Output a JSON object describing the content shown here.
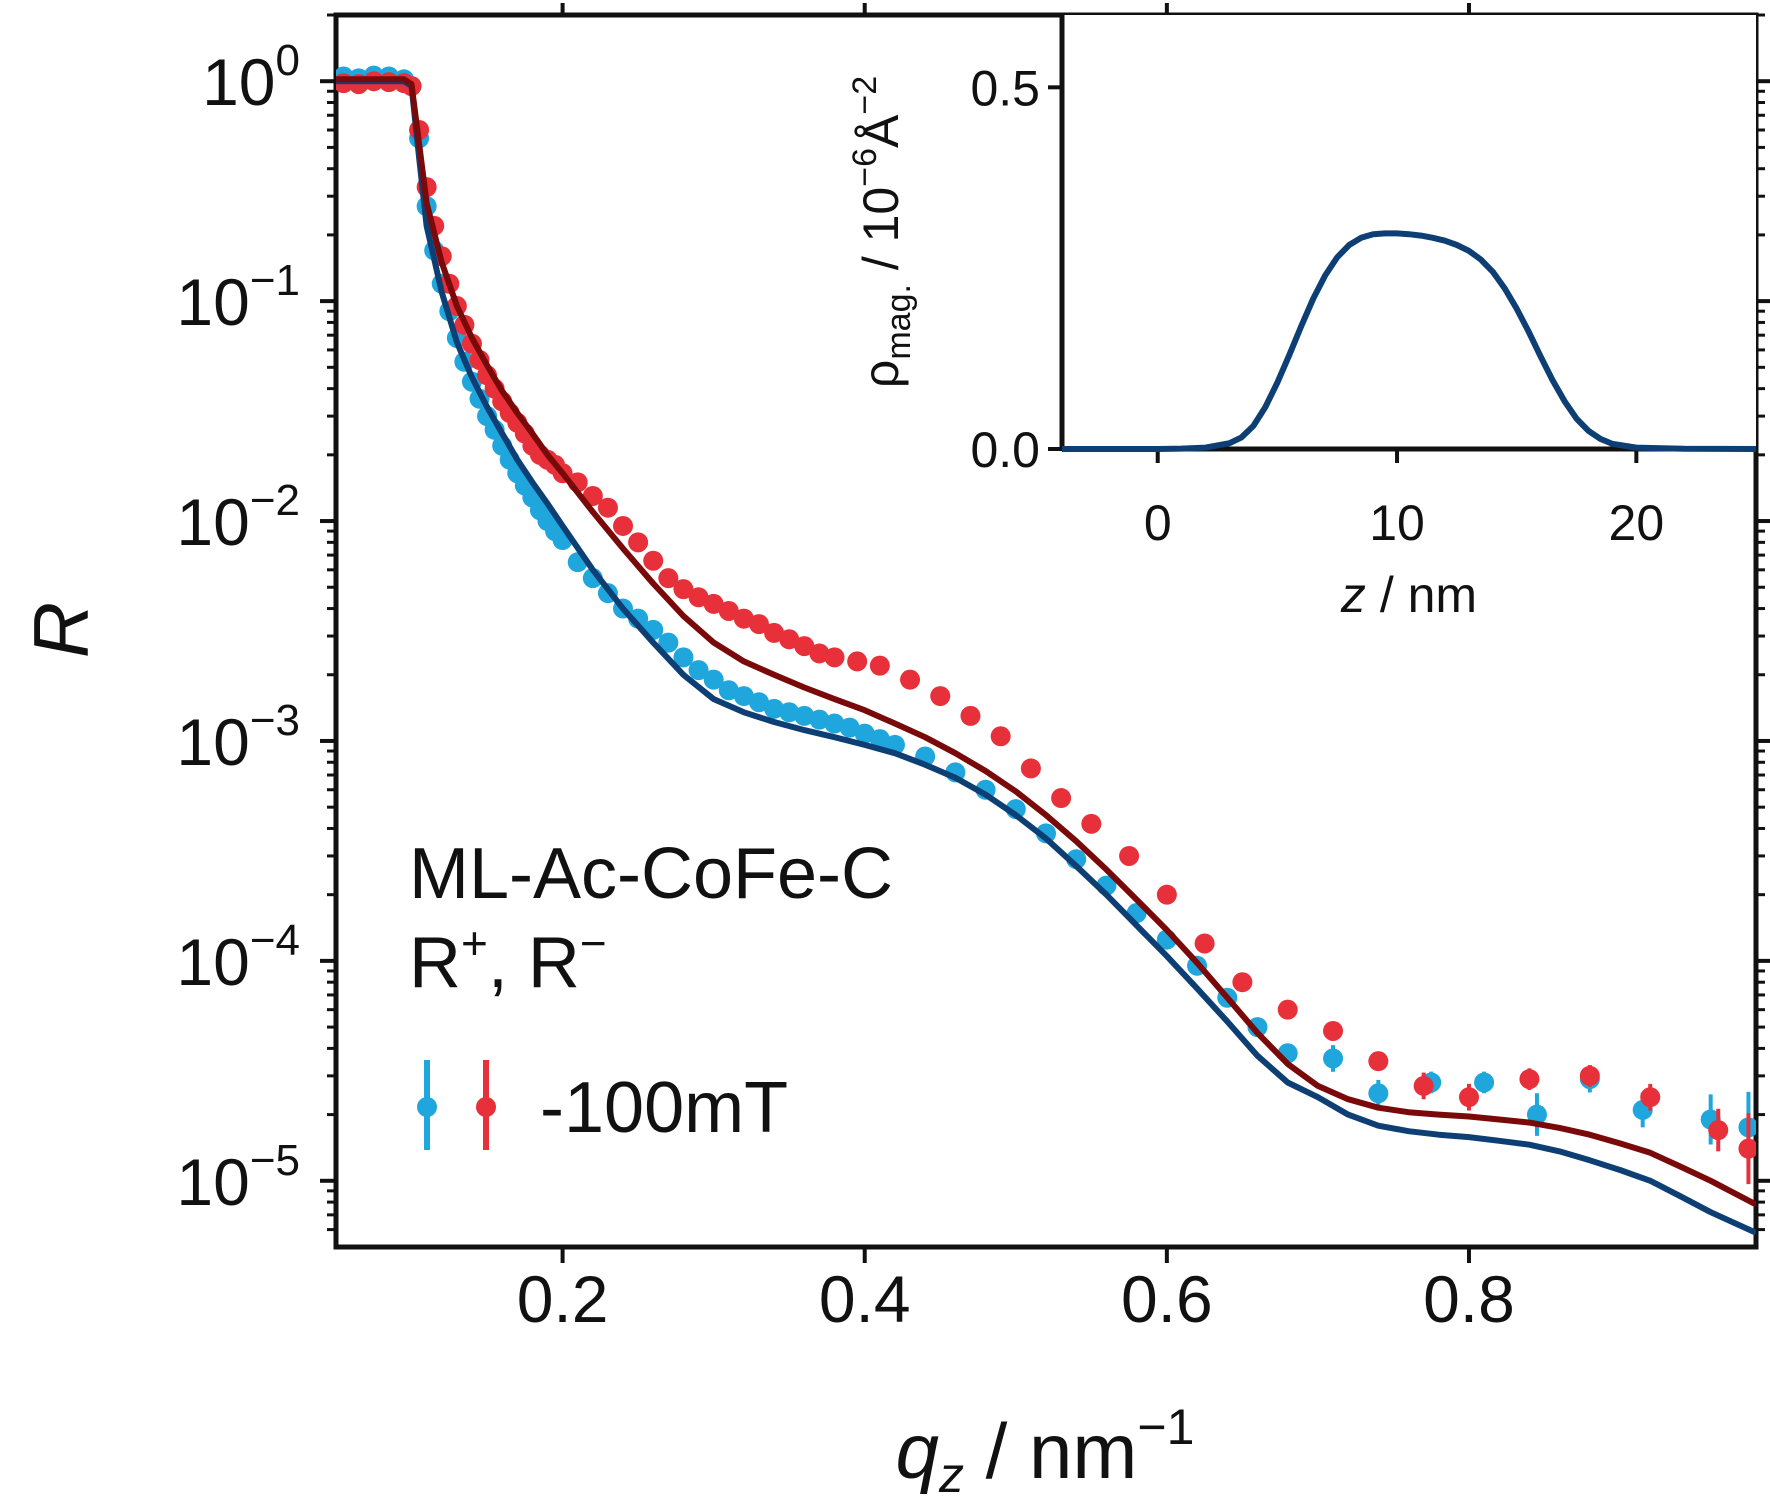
{
  "chart_data": [
    {
      "type": "scatter",
      "title": "",
      "ylabel": "R",
      "xlabel_base": "q",
      "xlabel_sub": "z",
      "xlabel_unit": " / nm",
      "xlabel_exp": "−1",
      "yscale": "log",
      "xlim": [
        0.05,
        0.99
      ],
      "ylim": [
        5e-06,
        2
      ],
      "x_ticks": [
        0.2,
        0.4,
        0.6,
        0.8
      ],
      "x_tick_labels": [
        "0.2",
        "0.4",
        "0.6",
        "0.8"
      ],
      "y_ticks": [
        1,
        0.1,
        0.01,
        0.001,
        0.0001,
        1e-05
      ],
      "y_tick_base": "10",
      "y_tick_exponents": [
        "0",
        "−1",
        "−2",
        "−3",
        "−4",
        "−5"
      ],
      "annotation": {
        "line1": "ML-Ac-CoFe-C",
        "line2_a": "R",
        "line2_a_sup": "+",
        "line2_sep": ", R",
        "line2_b_sup": "−"
      },
      "legend": {
        "label": "-100mT",
        "placement": "lower-left"
      },
      "series": [
        {
          "kind": "points",
          "color": "#1fa6dc",
          "x": [
            0.055,
            0.065,
            0.075,
            0.085,
            0.095,
            0.1,
            0.105,
            0.11,
            0.115,
            0.12,
            0.125,
            0.13,
            0.135,
            0.14,
            0.145,
            0.15,
            0.155,
            0.16,
            0.165,
            0.17,
            0.175,
            0.18,
            0.185,
            0.19,
            0.195,
            0.2,
            0.21,
            0.22,
            0.23,
            0.24,
            0.25,
            0.26,
            0.27,
            0.28,
            0.29,
            0.3,
            0.31,
            0.32,
            0.33,
            0.34,
            0.35,
            0.36,
            0.37,
            0.38,
            0.39,
            0.4,
            0.41,
            0.42,
            0.44,
            0.46,
            0.48,
            0.5,
            0.52,
            0.54,
            0.56,
            0.58,
            0.6,
            0.62,
            0.64,
            0.66,
            0.68,
            0.71,
            0.74,
            0.775,
            0.81,
            0.845,
            0.88,
            0.915,
            0.96,
            0.985
          ],
          "y": [
            1.05,
            1.03,
            1.06,
            1.05,
            1.02,
            0.95,
            0.55,
            0.27,
            0.17,
            0.12,
            0.09,
            0.068,
            0.053,
            0.043,
            0.036,
            0.03,
            0.026,
            0.022,
            0.019,
            0.0165,
            0.0145,
            0.0128,
            0.0112,
            0.01,
            0.009,
            0.0082,
            0.0065,
            0.0055,
            0.0047,
            0.004,
            0.0036,
            0.0032,
            0.0028,
            0.0024,
            0.0021,
            0.0019,
            0.0017,
            0.0016,
            0.0015,
            0.0014,
            0.00135,
            0.0013,
            0.00125,
            0.0012,
            0.00115,
            0.00108,
            0.00102,
            0.00096,
            0.00085,
            0.00072,
            0.0006,
            0.00049,
            0.00038,
            0.00029,
            0.00022,
            0.000165,
            0.000125,
            9.5e-05,
            6.8e-05,
            5e-05,
            3.8e-05,
            3.6e-05,
            2.5e-05,
            2.8e-05,
            2.8e-05,
            2e-05,
            2.9e-05,
            2.1e-05,
            1.9e-05,
            1.75e-05
          ],
          "err": [
            0,
            0,
            0,
            0,
            0,
            0,
            0,
            0,
            0,
            0,
            0,
            0,
            0,
            0,
            0,
            0,
            0,
            0,
            0,
            0,
            0,
            0,
            0,
            0,
            0,
            0,
            0,
            0,
            0,
            0,
            0,
            0,
            0,
            0,
            0,
            0,
            0,
            0,
            0,
            0,
            0,
            0,
            0,
            0,
            0,
            0,
            0,
            0,
            0,
            0,
            0,
            0,
            0,
            0,
            0,
            0,
            0,
            0,
            0,
            0,
            0,
            0.15,
            0.15,
            0.12,
            0.12,
            0.25,
            0.15,
            0.2,
            0.3,
            0.45
          ]
        },
        {
          "kind": "points",
          "color": "#e8303a",
          "x": [
            0.055,
            0.065,
            0.075,
            0.085,
            0.095,
            0.1,
            0.105,
            0.11,
            0.115,
            0.12,
            0.125,
            0.13,
            0.135,
            0.14,
            0.145,
            0.15,
            0.155,
            0.16,
            0.165,
            0.17,
            0.175,
            0.18,
            0.185,
            0.19,
            0.195,
            0.2,
            0.21,
            0.22,
            0.23,
            0.24,
            0.25,
            0.26,
            0.27,
            0.28,
            0.29,
            0.3,
            0.31,
            0.32,
            0.33,
            0.34,
            0.35,
            0.36,
            0.37,
            0.38,
            0.395,
            0.41,
            0.43,
            0.45,
            0.47,
            0.49,
            0.51,
            0.53,
            0.55,
            0.575,
            0.6,
            0.625,
            0.65,
            0.68,
            0.71,
            0.74,
            0.77,
            0.8,
            0.84,
            0.88,
            0.92,
            0.965,
            0.985
          ],
          "y": [
            0.98,
            0.97,
            1.0,
            0.99,
            0.98,
            0.95,
            0.6,
            0.33,
            0.22,
            0.16,
            0.12,
            0.095,
            0.078,
            0.064,
            0.054,
            0.046,
            0.04,
            0.035,
            0.031,
            0.028,
            0.025,
            0.022,
            0.02,
            0.019,
            0.018,
            0.0165,
            0.015,
            0.013,
            0.0115,
            0.0095,
            0.008,
            0.0066,
            0.0055,
            0.0049,
            0.0045,
            0.0042,
            0.0039,
            0.0036,
            0.0034,
            0.0031,
            0.0029,
            0.0027,
            0.0025,
            0.0024,
            0.0023,
            0.0022,
            0.0019,
            0.0016,
            0.0013,
            0.00105,
            0.00075,
            0.00055,
            0.00042,
            0.0003,
            0.0002,
            0.00012,
            8e-05,
            6e-05,
            4.8e-05,
            3.5e-05,
            2.7e-05,
            2.4e-05,
            2.9e-05,
            3e-05,
            2.4e-05,
            1.7e-05,
            1.4e-05
          ],
          "err": [
            0,
            0,
            0,
            0,
            0,
            0,
            0,
            0,
            0,
            0,
            0,
            0,
            0,
            0,
            0,
            0,
            0,
            0,
            0,
            0,
            0,
            0,
            0,
            0,
            0,
            0,
            0,
            0,
            0,
            0,
            0,
            0,
            0,
            0,
            0,
            0,
            0,
            0,
            0,
            0,
            0,
            0,
            0,
            0,
            0,
            0,
            0,
            0,
            0,
            0,
            0,
            0,
            0,
            0,
            0,
            0,
            0,
            0,
            0,
            0,
            0.15,
            0.15,
            0.12,
            0.12,
            0.15,
            0.25,
            0.45
          ]
        },
        {
          "kind": "line",
          "color": "#0e3f74",
          "x": [
            0.05,
            0.095,
            0.1,
            0.105,
            0.11,
            0.12,
            0.13,
            0.14,
            0.15,
            0.16,
            0.17,
            0.18,
            0.19,
            0.2,
            0.22,
            0.24,
            0.26,
            0.28,
            0.3,
            0.32,
            0.34,
            0.36,
            0.38,
            0.4,
            0.42,
            0.44,
            0.46,
            0.48,
            0.5,
            0.52,
            0.54,
            0.56,
            0.58,
            0.6,
            0.62,
            0.64,
            0.66,
            0.68,
            0.7,
            0.72,
            0.74,
            0.76,
            0.78,
            0.8,
            0.82,
            0.84,
            0.86,
            0.88,
            0.9,
            0.92,
            0.94,
            0.96,
            0.99
          ],
          "y": [
            1.0,
            1.0,
            0.95,
            0.45,
            0.22,
            0.11,
            0.065,
            0.045,
            0.033,
            0.025,
            0.019,
            0.015,
            0.012,
            0.0095,
            0.006,
            0.004,
            0.0028,
            0.002,
            0.00155,
            0.00135,
            0.00122,
            0.00112,
            0.00104,
            0.00096,
            0.00088,
            0.00078,
            0.00068,
            0.00057,
            0.00046,
            0.00036,
            0.00027,
            0.0002,
            0.000145,
            0.000105,
            7.5e-05,
            5.3e-05,
            3.7e-05,
            2.8e-05,
            2.4e-05,
            2e-05,
            1.78e-05,
            1.68e-05,
            1.62e-05,
            1.58e-05,
            1.52e-05,
            1.46e-05,
            1.36e-05,
            1.24e-05,
            1.12e-05,
            1e-05,
            8.5e-06,
            7.2e-06,
            5.8e-06
          ]
        },
        {
          "kind": "line",
          "color": "#7a0a0a",
          "x": [
            0.05,
            0.095,
            0.1,
            0.105,
            0.11,
            0.12,
            0.13,
            0.14,
            0.15,
            0.16,
            0.17,
            0.18,
            0.19,
            0.2,
            0.22,
            0.24,
            0.26,
            0.28,
            0.3,
            0.32,
            0.34,
            0.36,
            0.38,
            0.4,
            0.42,
            0.44,
            0.46,
            0.48,
            0.5,
            0.52,
            0.54,
            0.56,
            0.58,
            0.6,
            0.62,
            0.64,
            0.66,
            0.68,
            0.7,
            0.72,
            0.74,
            0.76,
            0.78,
            0.8,
            0.82,
            0.84,
            0.86,
            0.88,
            0.9,
            0.92,
            0.94,
            0.96,
            0.99
          ],
          "y": [
            1.02,
            1.02,
            0.97,
            0.52,
            0.28,
            0.15,
            0.095,
            0.068,
            0.051,
            0.039,
            0.031,
            0.025,
            0.02,
            0.0165,
            0.011,
            0.0075,
            0.0052,
            0.0037,
            0.0028,
            0.0023,
            0.002,
            0.00175,
            0.00155,
            0.00138,
            0.0012,
            0.00104,
            0.00088,
            0.00073,
            0.00059,
            0.00046,
            0.00035,
            0.00026,
            0.00019,
            0.000138,
            9.8e-05,
            6.8e-05,
            4.7e-05,
            3.4e-05,
            2.7e-05,
            2.35e-05,
            2.15e-05,
            2.05e-05,
            2e-05,
            1.96e-05,
            1.9e-05,
            1.84e-05,
            1.74e-05,
            1.62e-05,
            1.48e-05,
            1.34e-05,
            1.16e-05,
            1e-05,
            7.8e-06
          ]
        }
      ]
    },
    {
      "type": "line",
      "title": "",
      "ylabel_base": "ρ",
      "ylabel_sub": "mag.",
      "ylabel_unit": " / 10",
      "ylabel_exp1": "−6",
      "ylabel_unit2": "Å",
      "ylabel_exp2": "−2",
      "xlabel_base": "z",
      "xlabel_unit": " / nm",
      "xlim": [
        -4,
        25
      ],
      "ylim": [
        0,
        0.6
      ],
      "x_ticks": [
        0,
        10,
        20
      ],
      "x_tick_labels": [
        "0",
        "10",
        "20"
      ],
      "y_ticks": [
        0.0,
        0.5
      ],
      "y_tick_labels": [
        "0.0",
        "0.5"
      ],
      "series": [
        {
          "kind": "line",
          "color": "#0e3f74",
          "x": [
            -4,
            -2,
            0,
            1,
            2,
            3,
            3.5,
            4,
            4.5,
            5,
            5.5,
            6,
            6.5,
            7,
            7.5,
            8,
            8.5,
            9,
            9.5,
            10,
            10.5,
            11,
            11.5,
            12,
            12.5,
            13,
            13.5,
            14,
            14.5,
            15,
            15.5,
            16,
            16.5,
            17,
            17.5,
            18,
            18.5,
            19,
            20,
            22,
            25
          ],
          "y": [
            0.0,
            0.0,
            0.0,
            0.0005,
            0.002,
            0.008,
            0.016,
            0.032,
            0.058,
            0.092,
            0.13,
            0.17,
            0.208,
            0.24,
            0.265,
            0.282,
            0.292,
            0.297,
            0.298,
            0.298,
            0.297,
            0.295,
            0.292,
            0.288,
            0.282,
            0.274,
            0.262,
            0.245,
            0.222,
            0.194,
            0.162,
            0.128,
            0.095,
            0.066,
            0.042,
            0.025,
            0.014,
            0.007,
            0.002,
            0.0003,
            0.0
          ]
        }
      ]
    }
  ]
}
